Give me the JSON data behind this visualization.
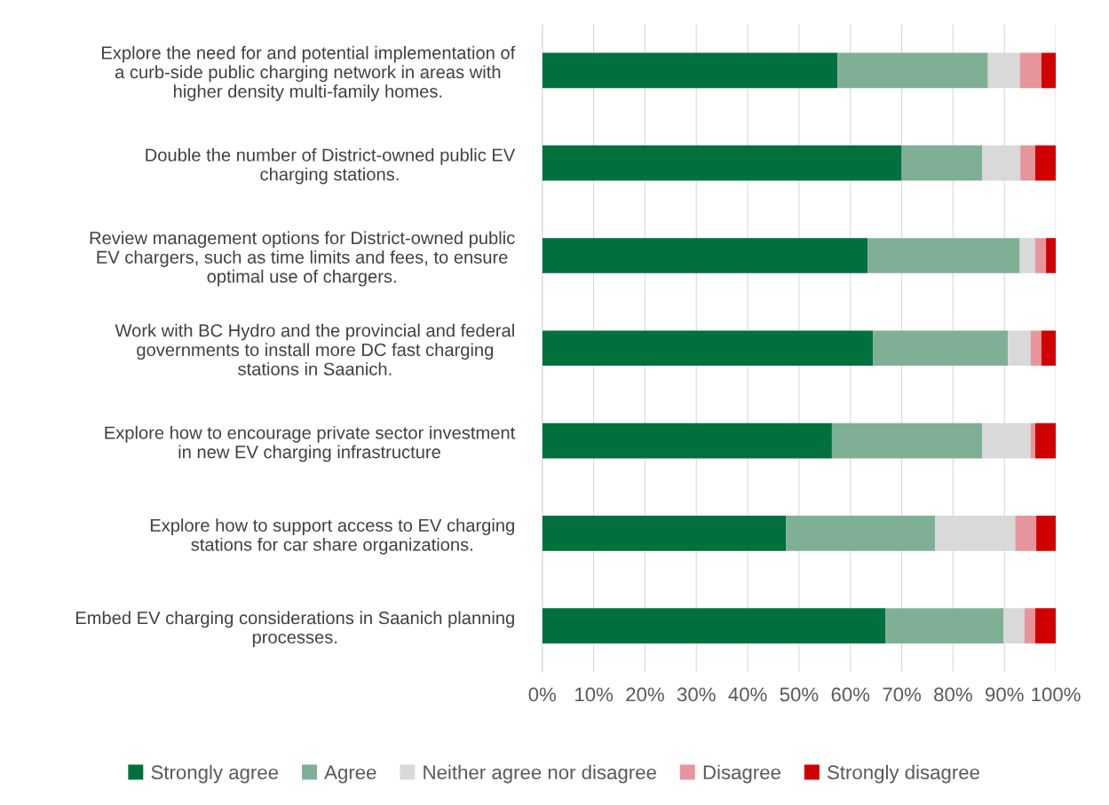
{
  "chart_data": {
    "type": "bar",
    "orientation": "horizontal",
    "stacked": true,
    "categories": [
      "Explore the need for and potential implementation of a curb-side public charging network in areas with higher density multi-family homes.",
      "Double the number of District-owned public EV charging stations.",
      "Review management options for District-owned public EV chargers, such as time limits and fees, to ensure optimal use of chargers.",
      "Work with BC Hydro and the provincial and federal governments to install more DC fast charging stations in Saanich.",
      "Explore how to encourage private sector investment in new EV charging infrastructure",
      "Explore how to support access to EV charging stations for car share organizations.",
      "Embed EV charging considerations in Saanich planning processes."
    ],
    "series": [
      {
        "name": "Strongly agree",
        "color": "#00703c",
        "values": [
          57.5,
          70.0,
          63.4,
          64.4,
          56.4,
          47.5,
          66.8
        ]
      },
      {
        "name": "Agree",
        "color": "#7fb096",
        "values": [
          29.3,
          15.7,
          29.6,
          26.3,
          29.3,
          29.0,
          23.0
        ]
      },
      {
        "name": "Neither agree nor disagree",
        "color": "#d9d9d9",
        "values": [
          6.2,
          7.4,
          3.0,
          4.4,
          9.4,
          15.6,
          4.1
        ]
      },
      {
        "name": "Disagree",
        "color": "#e6959c",
        "values": [
          4.2,
          2.9,
          2.1,
          2.1,
          0.9,
          4.1,
          2.1
        ]
      },
      {
        "name": "Strongly disagree",
        "color": "#d00000",
        "values": [
          2.8,
          4.0,
          1.9,
          2.8,
          4.0,
          3.8,
          4.0
        ]
      }
    ],
    "xlim": [
      0,
      100
    ],
    "xticks": [
      {
        "value": 0,
        "label": "0%"
      },
      {
        "value": 10,
        "label": "10%"
      },
      {
        "value": 20,
        "label": "20%"
      },
      {
        "value": 30,
        "label": "30%"
      },
      {
        "value": 40,
        "label": "40%"
      },
      {
        "value": 50,
        "label": "50%"
      },
      {
        "value": 60,
        "label": "60%"
      },
      {
        "value": 70,
        "label": "70%"
      },
      {
        "value": 80,
        "label": "80%"
      },
      {
        "value": 90,
        "label": "90%"
      },
      {
        "value": 100,
        "label": "100%"
      }
    ],
    "grid": "x",
    "legend": "bottom"
  }
}
